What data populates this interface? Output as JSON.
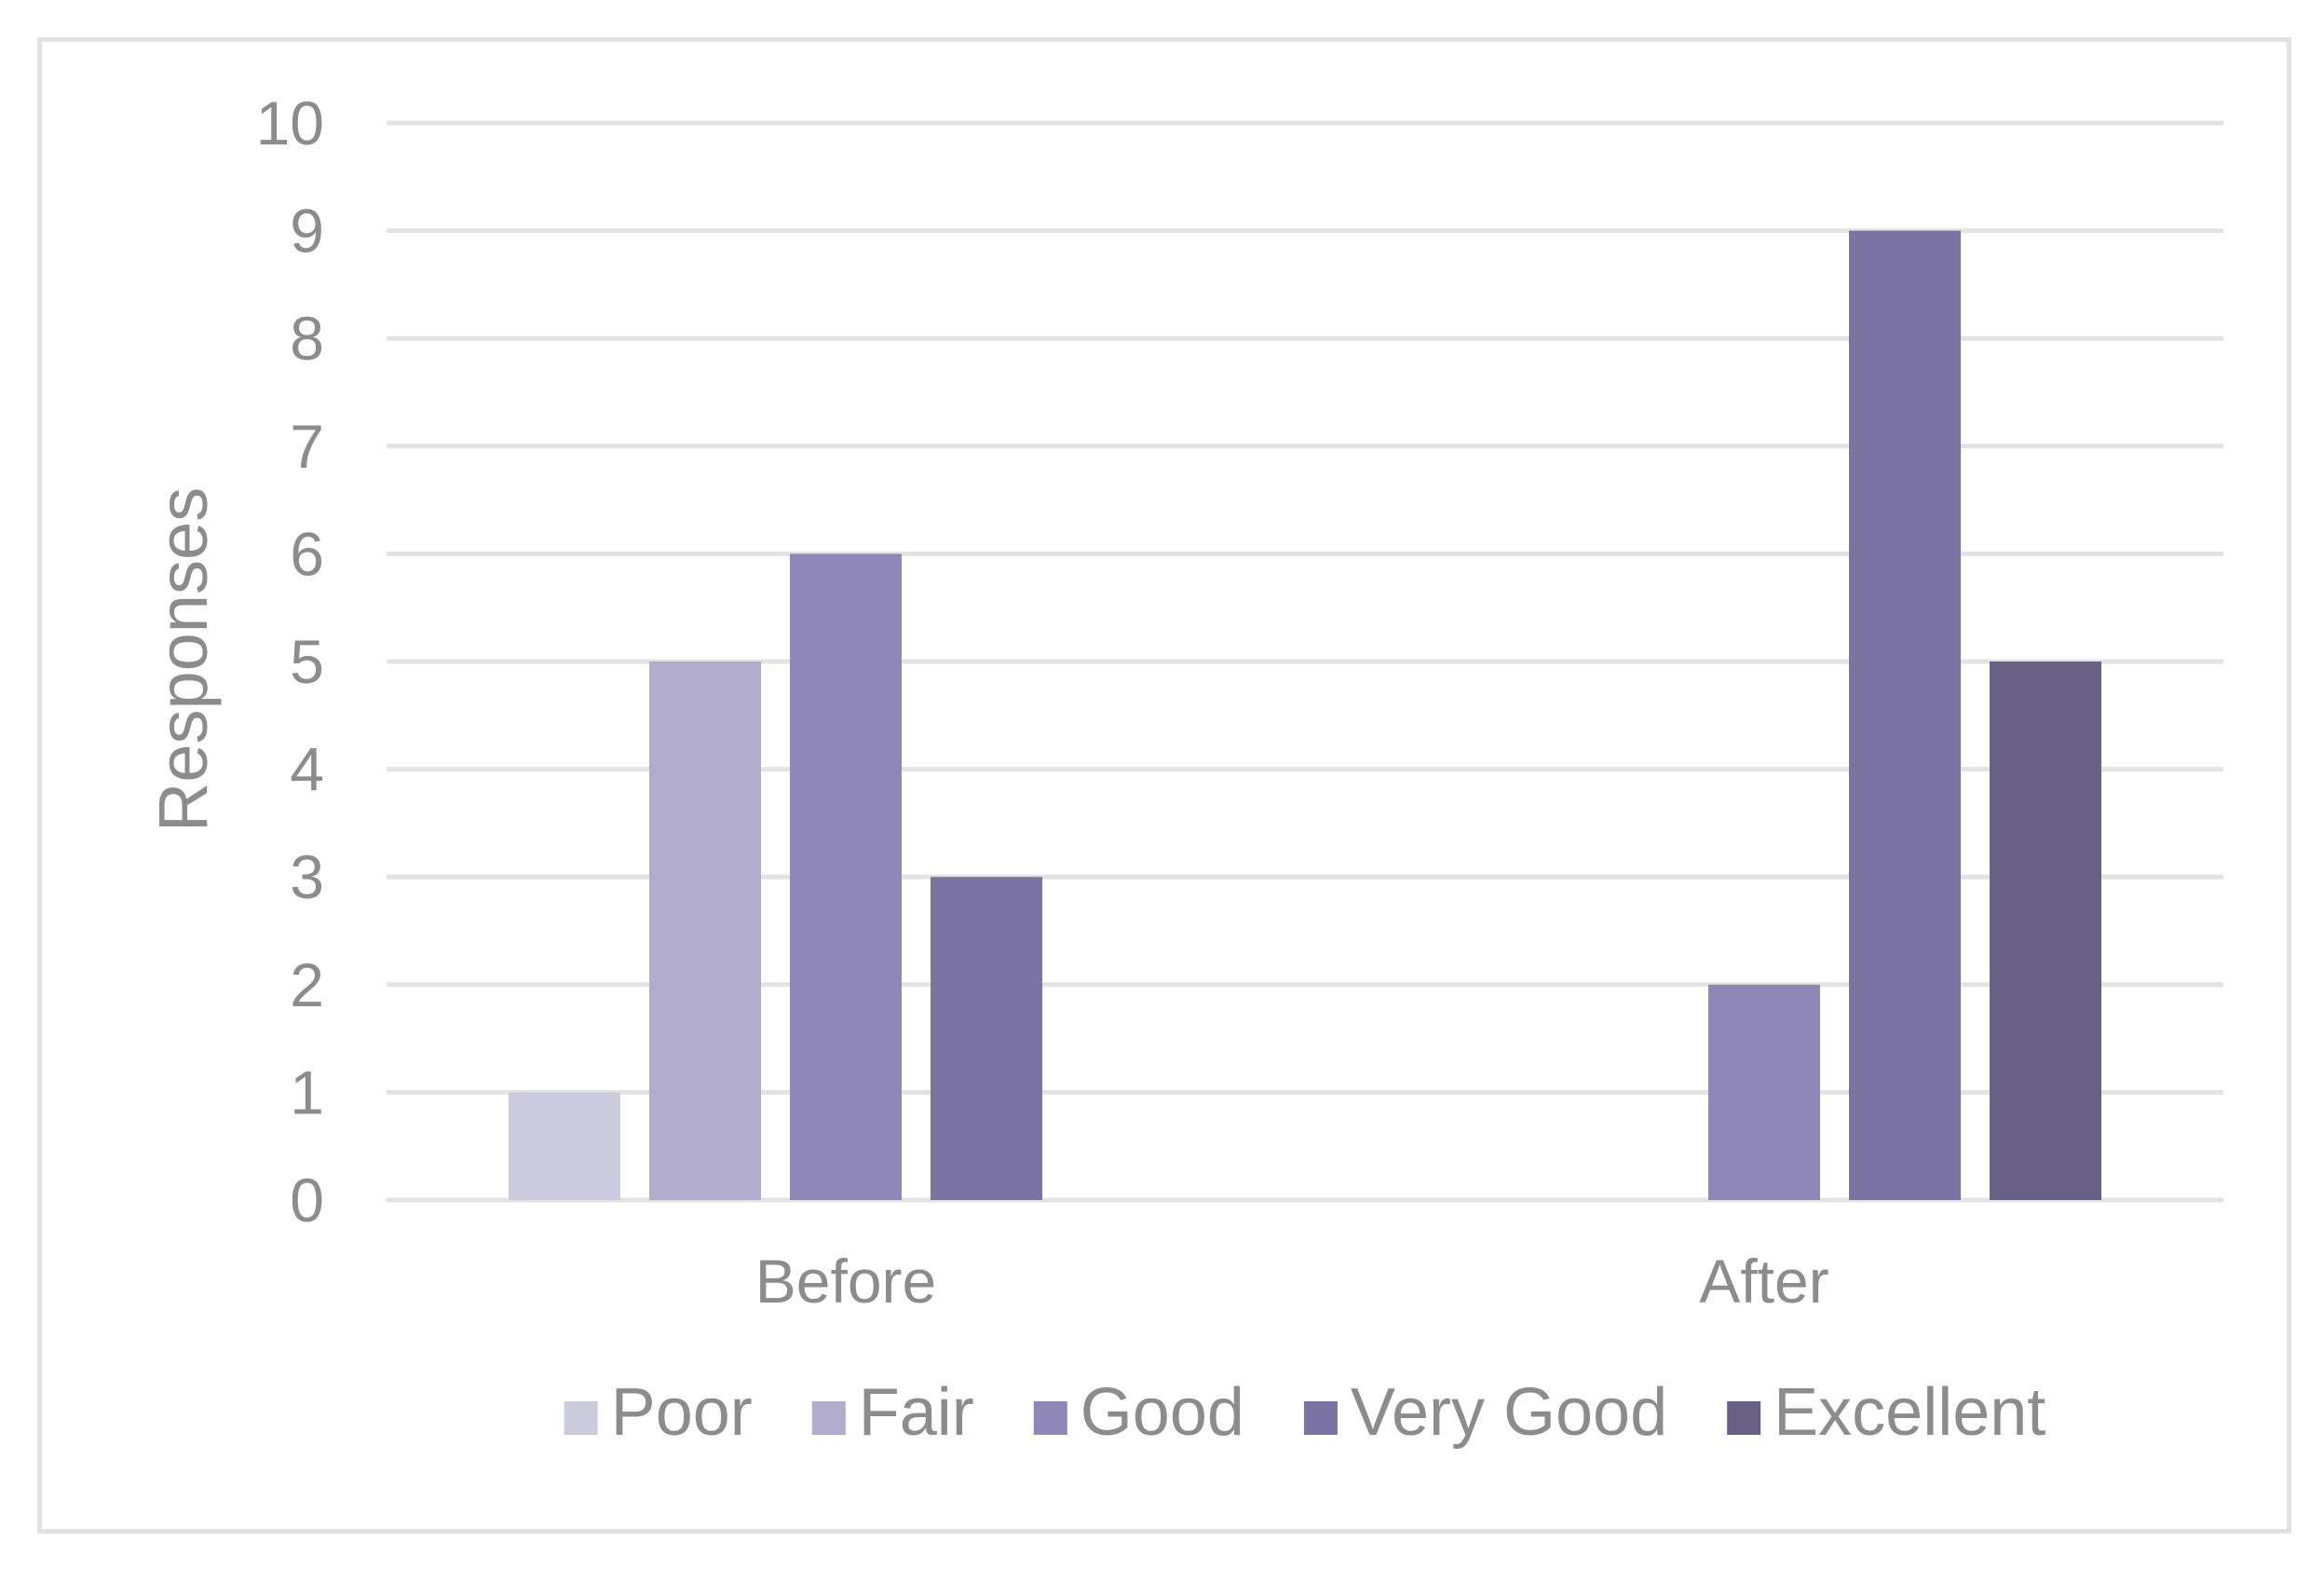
{
  "chart_data": {
    "type": "bar",
    "title": "",
    "xlabel": "",
    "ylabel": "Responses",
    "ylim": [
      0,
      10
    ],
    "yticks": [
      "0",
      "1",
      "2",
      "3",
      "4",
      "5",
      "6",
      "7",
      "8",
      "9",
      "10"
    ],
    "grid": true,
    "legend_position": "bottom",
    "categories": [
      "Before",
      "After"
    ],
    "series": [
      {
        "name": "Poor",
        "color": "#cccadd",
        "values": [
          1,
          0
        ]
      },
      {
        "name": "Fair",
        "color": "#b1accb",
        "values": [
          5,
          0
        ]
      },
      {
        "name": "Good",
        "color": "#8e87b8",
        "values": [
          6,
          2
        ]
      },
      {
        "name": "Very Good",
        "color": "#7b73a2",
        "values": [
          3,
          9
        ]
      },
      {
        "name": "Excellent",
        "color": "#686185",
        "values": [
          0,
          5
        ]
      }
    ]
  }
}
